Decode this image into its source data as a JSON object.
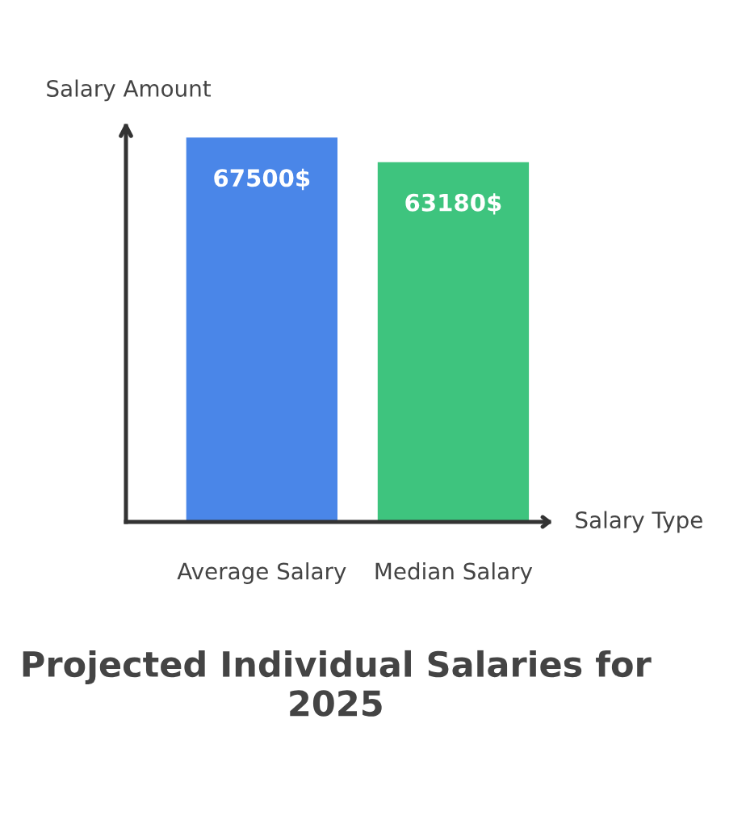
{
  "chart_data": {
    "type": "bar",
    "title": "Projected Individual Salaries for 2025",
    "xlabel": "Salary Type",
    "ylabel": "Salary Amount",
    "categories": [
      "Average Salary",
      "Median Salary"
    ],
    "values": [
      67500,
      63180
    ],
    "colors": [
      "#4a86e8",
      "#3ec47e"
    ],
    "value_labels": [
      "67500$",
      "63180$"
    ],
    "tick_labels": "x",
    "grid": false,
    "legend": false
  }
}
